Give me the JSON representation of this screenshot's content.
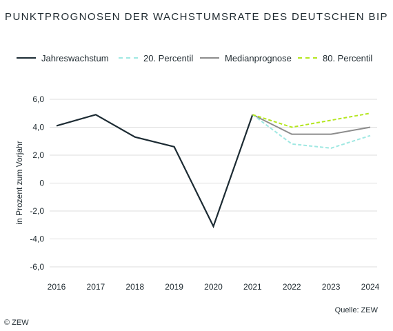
{
  "chart_data": {
    "type": "line",
    "title": "PUNKTPROGNOSEN DER WACHSTUMSRATE DES DEUTSCHEN BIP",
    "ylabel": "in Prozent zum Vorjahr",
    "xlabel": "",
    "x": [
      2016,
      2017,
      2018,
      2019,
      2020,
      2021,
      2022,
      2023,
      2024
    ],
    "ylim": [
      -6.0,
      6.0
    ],
    "yticks": [
      "6,0",
      "4,0",
      "2,0",
      "0",
      "-2,0",
      "-4,0",
      "-6,0"
    ],
    "ytick_values": [
      6,
      4,
      2,
      0,
      -2,
      -4,
      -6
    ],
    "grid": "horizontal",
    "legend_position": "top",
    "series": [
      {
        "name": "Jahreswachstum",
        "color": "#1c2b33",
        "style": "solid",
        "x": [
          2016,
          2017,
          2018,
          2019,
          2020,
          2021
        ],
        "values": [
          4.1,
          4.9,
          3.3,
          2.6,
          -3.1,
          4.9
        ]
      },
      {
        "name": "20. Percentil",
        "color": "#9fe8e2",
        "style": "dashed",
        "x": [
          2021,
          2022,
          2023,
          2024
        ],
        "values": [
          4.9,
          2.8,
          2.5,
          3.4
        ]
      },
      {
        "name": "Medianprognose",
        "color": "#8c8c8c",
        "style": "solid",
        "x": [
          2021,
          2022,
          2023,
          2024
        ],
        "values": [
          4.9,
          3.5,
          3.5,
          4.0
        ]
      },
      {
        "name": "80. Percentil",
        "color": "#b4e61e",
        "style": "dashed",
        "x": [
          2021,
          2022,
          2023,
          2024
        ],
        "values": [
          4.9,
          4.0,
          4.5,
          5.0
        ]
      }
    ]
  },
  "source": "Quelle: ZEW",
  "copyright": "© ZEW"
}
